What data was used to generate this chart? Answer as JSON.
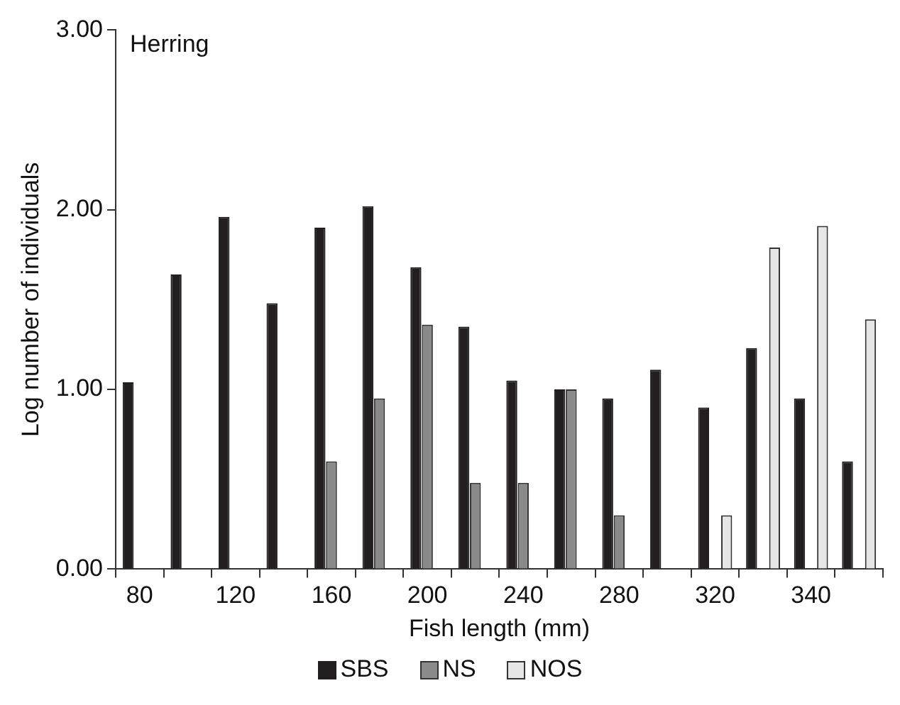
{
  "chart_data": {
    "type": "bar",
    "xlabel": "Fish length (mm)",
    "ylabel": "Log number of individuals",
    "annotations": [
      "Herring"
    ],
    "categories": [
      "80",
      null,
      "120",
      null,
      "160",
      null,
      "200",
      null,
      "240",
      null,
      "280",
      null,
      "320",
      null,
      "340",
      null
    ],
    "series": [
      {
        "name": "SBS",
        "color": "#231f20",
        "values": [
          1.04,
          1.64,
          1.96,
          1.48,
          1.9,
          2.02,
          1.68,
          1.35,
          1.05,
          1.0,
          0.95,
          1.11,
          0.9,
          1.23,
          0.95,
          0.6
        ]
      },
      {
        "name": "NS",
        "color": "#8a8a8a",
        "values": [
          null,
          null,
          null,
          null,
          0.6,
          0.95,
          1.36,
          0.48,
          0.48,
          1.0,
          0.3,
          null,
          null,
          null,
          null,
          null
        ]
      },
      {
        "name": "NOS",
        "color": "#e6e6e6",
        "values": [
          null,
          null,
          null,
          null,
          null,
          null,
          null,
          null,
          null,
          null,
          null,
          null,
          0.3,
          1.79,
          1.91,
          1.39
        ]
      }
    ],
    "ylim": [
      0,
      3
    ],
    "yticks": [
      {
        "value": 0,
        "label": "0.00"
      },
      {
        "value": 1,
        "label": "1.00"
      },
      {
        "value": 2,
        "label": "2.00"
      },
      {
        "value": 3,
        "label": "3.00"
      }
    ],
    "grid": false,
    "legend": "bottom"
  }
}
